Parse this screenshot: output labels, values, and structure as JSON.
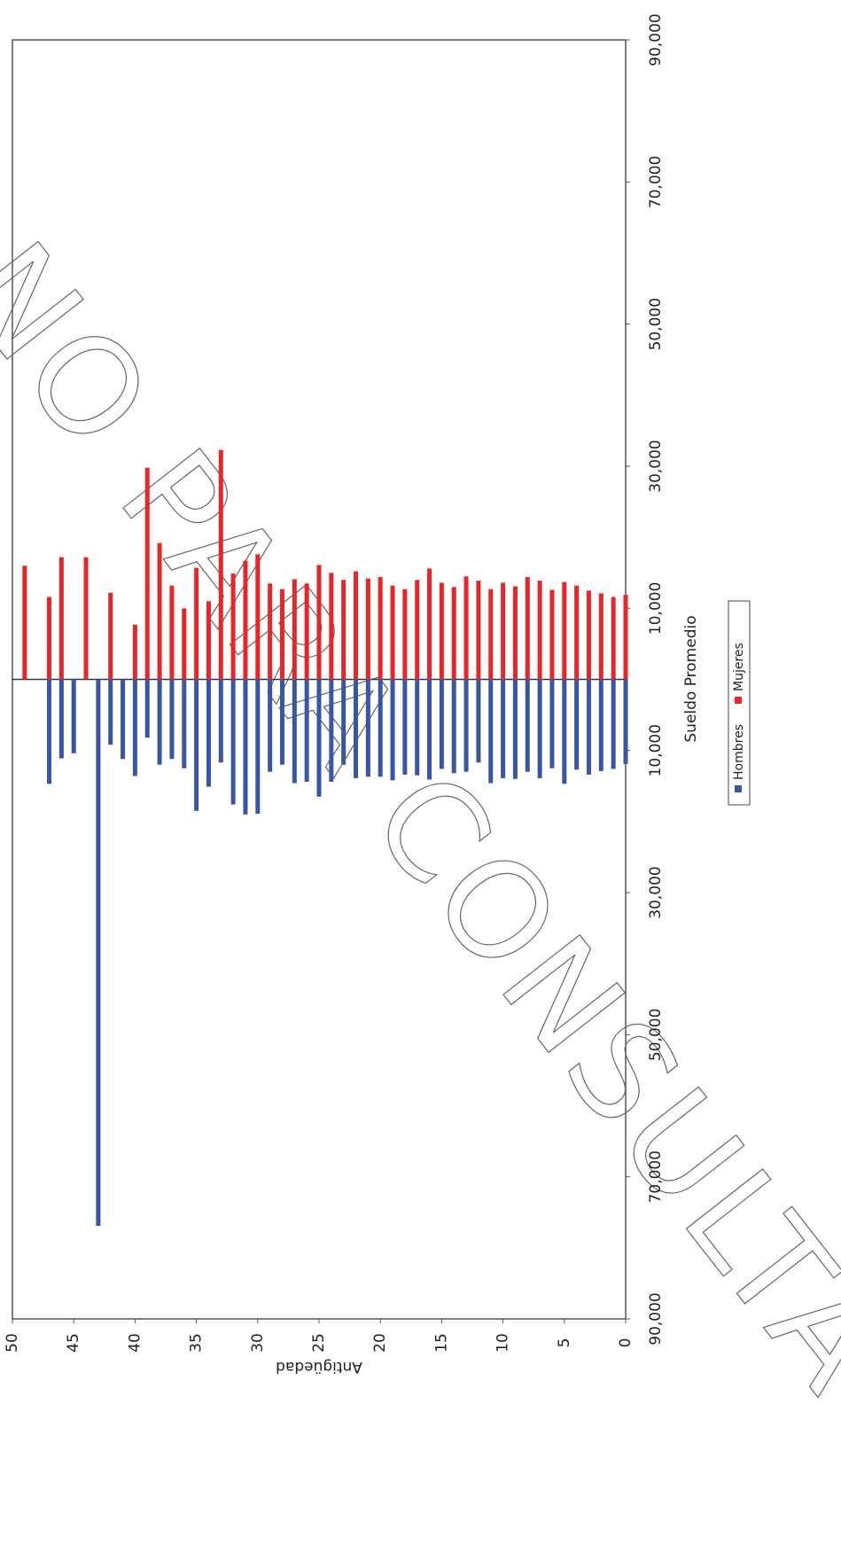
{
  "chart_data": {
    "type": "bar",
    "x_label": "Antigüedad",
    "y_label": "Sueldo Promedio",
    "watermark": "NO PARA CONSULTA",
    "x": [
      0,
      1,
      2,
      3,
      4,
      5,
      6,
      7,
      8,
      9,
      10,
      11,
      12,
      13,
      14,
      15,
      16,
      17,
      18,
      19,
      20,
      21,
      22,
      23,
      24,
      25,
      26,
      27,
      28,
      29,
      30,
      31,
      32,
      33,
      34,
      35,
      36,
      37,
      38,
      39,
      40,
      41,
      42,
      43,
      44,
      45,
      46,
      47,
      48,
      49
    ],
    "xlim": [
      0,
      50
    ],
    "xticks": [
      0,
      5,
      10,
      15,
      20,
      25,
      30,
      35,
      40,
      45,
      50
    ],
    "ylim": [
      -90000,
      90000
    ],
    "yticks": [
      {
        "value": -90000,
        "label": "90,000"
      },
      {
        "value": -70000,
        "label": "70,000"
      },
      {
        "value": -50000,
        "label": "50,000"
      },
      {
        "value": -30000,
        "label": "30,000"
      },
      {
        "value": -10000,
        "label": "10,000"
      },
      {
        "value": 10000,
        "label": "10,000"
      },
      {
        "value": 30000,
        "label": "30,000"
      },
      {
        "value": 50000,
        "label": "50,000"
      },
      {
        "value": 70000,
        "label": "70,000"
      },
      {
        "value": 90000,
        "label": "90,000"
      }
    ],
    "series": [
      {
        "name": "Hombres",
        "color": "#3a55a3",
        "values": [
          -11900,
          -12600,
          -12900,
          -13400,
          -12700,
          -14700,
          -12500,
          -13900,
          -13000,
          -14000,
          -13900,
          -14600,
          -11700,
          -13000,
          -13200,
          -12600,
          -14100,
          -13500,
          -13400,
          -14200,
          -13700,
          -13700,
          -13900,
          -12000,
          -14400,
          -16500,
          -14400,
          -14600,
          -12000,
          -13000,
          -18900,
          -19000,
          -17600,
          -11700,
          -15100,
          -18500,
          -12500,
          -11200,
          -12000,
          -8200,
          -13600,
          -11200,
          -9200,
          -76900,
          null,
          -10400,
          -11100,
          -14700,
          null,
          null
        ]
      },
      {
        "name": "Mujeres",
        "color": "#e8262a",
        "values": [
          11900,
          11600,
          12100,
          12500,
          13200,
          13700,
          12600,
          13900,
          14400,
          13100,
          13600,
          12700,
          13900,
          14500,
          13000,
          13600,
          15600,
          14000,
          12700,
          13200,
          14400,
          14200,
          15200,
          14000,
          15000,
          16100,
          13500,
          14100,
          12700,
          13500,
          17600,
          16700,
          14900,
          32300,
          11000,
          15700,
          10000,
          13200,
          19200,
          29800,
          7700,
          null,
          12200,
          null,
          17200,
          null,
          17200,
          11600,
          null,
          16000
        ]
      }
    ]
  }
}
